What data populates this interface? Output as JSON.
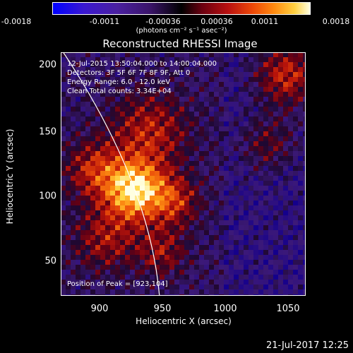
{
  "colorbar": {
    "ticks": [
      "-0.0018",
      "-0.0011",
      "-0.00036",
      "0.00036",
      "0.0011",
      "0.0018"
    ],
    "units": "(photons cm⁻² s⁻¹ asec⁻²)"
  },
  "plot": {
    "title": "Reconstructed RHESSI Image",
    "info": {
      "line1": "12-Jul-2015 13:50:04.000 to 14:00:04.000",
      "line2": "Detectors: 3F 5F 6F 7F 8F 9F, Att 0",
      "line3": "Energy Range: 6.0 - 12.0 keV",
      "line4": "Clean     Total counts: 3.34E+04"
    },
    "peak_label": "Position of Peak = [923,104]",
    "xlabel": "Heliocentric X (arcsec)",
    "ylabel": "Heliocentric Y (arcsec)",
    "xticks": [
      "900",
      "950",
      "1000",
      "1050"
    ],
    "yticks": [
      "200",
      "150",
      "100",
      "50"
    ]
  },
  "footer": {
    "date": "21-Jul-2017 12:25"
  },
  "chart_data": {
    "type": "heatmap",
    "title": "Reconstructed RHESSI Image",
    "xlabel": "Heliocentric X (arcsec)",
    "ylabel": "Heliocentric Y (arcsec)",
    "xlim": [
      864,
      1060
    ],
    "ylim": [
      20,
      213
    ],
    "color_range": [
      -0.0018,
      0.0018
    ],
    "peak": [
      923,
      104
    ],
    "colormap": [
      "#0000ff",
      "#3a1468",
      "#000000",
      "#b81010",
      "#ff8a10",
      "#ffffe0"
    ]
  }
}
